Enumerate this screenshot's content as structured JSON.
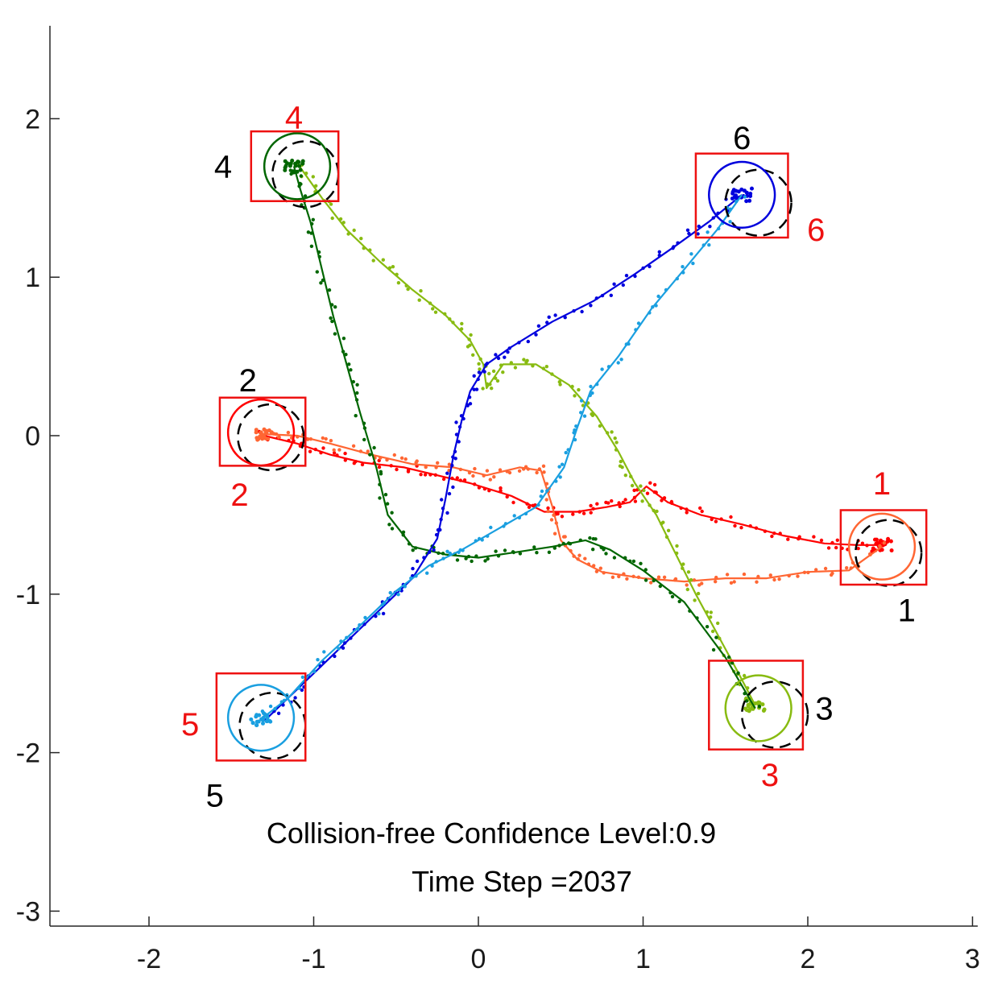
{
  "chart_data": {
    "type": "scatter",
    "title": "",
    "xlabel": "",
    "ylabel": "",
    "xlim": [
      -2.6,
      3.05
    ],
    "ylim": [
      -3.1,
      2.6
    ],
    "xticks": [
      "-2",
      "-1",
      "0",
      "1",
      "2",
      "3"
    ],
    "yticks": [
      "2",
      "1",
      "0",
      "-1",
      "-2",
      "-3"
    ],
    "xtick_values": [
      -2,
      -1,
      0,
      1,
      2,
      3
    ],
    "ytick_values": [
      2,
      1,
      0,
      -1,
      -2,
      -3
    ],
    "grid": false,
    "annotations": [
      "Collision-free Confidence Level:0.9",
      "Time Step =2037"
    ],
    "series": [
      {
        "color": "#ff0000",
        "start_label": "2",
        "goal_label": "1",
        "current": [
          2.45,
          -0.69
        ],
        "path": [
          [
            -1.3,
            0.0
          ],
          [
            -1.1,
            -0.05
          ],
          [
            -0.9,
            -0.12
          ],
          [
            -0.7,
            -0.17
          ],
          [
            -0.45,
            -0.2
          ],
          [
            -0.25,
            -0.25
          ],
          [
            -0.05,
            -0.3
          ],
          [
            0.2,
            -0.38
          ],
          [
            0.4,
            -0.48
          ],
          [
            0.6,
            -0.48
          ],
          [
            0.78,
            -0.45
          ],
          [
            0.92,
            -0.42
          ],
          [
            1.02,
            -0.32
          ],
          [
            1.15,
            -0.42
          ],
          [
            1.35,
            -0.5
          ],
          [
            1.6,
            -0.56
          ],
          [
            1.85,
            -0.63
          ],
          [
            2.1,
            -0.68
          ],
          [
            2.3,
            -0.69
          ],
          [
            2.45,
            -0.69
          ]
        ]
      },
      {
        "color": "#ff6633",
        "start_label": "1",
        "goal_label": "2",
        "current": [
          -1.3,
          0.01
        ],
        "path": [
          [
            2.45,
            -0.7
          ],
          [
            2.25,
            -0.85
          ],
          [
            2.0,
            -0.86
          ],
          [
            1.75,
            -0.9
          ],
          [
            1.5,
            -0.9
          ],
          [
            1.25,
            -0.92
          ],
          [
            1.0,
            -0.9
          ],
          [
            0.75,
            -0.86
          ],
          [
            0.6,
            -0.78
          ],
          [
            0.5,
            -0.66
          ],
          [
            0.45,
            -0.45
          ],
          [
            0.38,
            -0.22
          ],
          [
            0.25,
            -0.2
          ],
          [
            0.05,
            -0.25
          ],
          [
            -0.15,
            -0.2
          ],
          [
            -0.4,
            -0.18
          ],
          [
            -0.65,
            -0.12
          ],
          [
            -0.9,
            -0.05
          ],
          [
            -1.1,
            0.0
          ],
          [
            -1.3,
            0.01
          ]
        ]
      },
      {
        "color": "#88bb11",
        "start_label": "4",
        "goal_label": "3",
        "current": [
          1.68,
          -1.7
        ],
        "path": [
          [
            -1.1,
            1.72
          ],
          [
            -0.95,
            1.5
          ],
          [
            -0.8,
            1.3
          ],
          [
            -0.6,
            1.1
          ],
          [
            -0.4,
            0.92
          ],
          [
            -0.2,
            0.76
          ],
          [
            -0.05,
            0.6
          ],
          [
            0.03,
            0.45
          ],
          [
            0.05,
            0.3
          ],
          [
            0.15,
            0.45
          ],
          [
            0.35,
            0.45
          ],
          [
            0.55,
            0.32
          ],
          [
            0.72,
            0.12
          ],
          [
            0.85,
            -0.1
          ],
          [
            0.95,
            -0.3
          ],
          [
            1.08,
            -0.5
          ],
          [
            1.2,
            -0.75
          ],
          [
            1.32,
            -1.0
          ],
          [
            1.45,
            -1.25
          ],
          [
            1.58,
            -1.5
          ],
          [
            1.68,
            -1.7
          ]
        ]
      },
      {
        "color": "#006600",
        "start_label": "3",
        "goal_label": "4",
        "current": [
          -1.12,
          1.7
        ],
        "path": [
          [
            1.68,
            -1.72
          ],
          [
            1.5,
            -1.4
          ],
          [
            1.25,
            -1.05
          ],
          [
            1.0,
            -0.85
          ],
          [
            0.8,
            -0.72
          ],
          [
            0.65,
            -0.66
          ],
          [
            0.45,
            -0.7
          ],
          [
            0.2,
            -0.74
          ],
          [
            0.0,
            -0.77
          ],
          [
            -0.2,
            -0.75
          ],
          [
            -0.4,
            -0.7
          ],
          [
            -0.55,
            -0.5
          ],
          [
            -0.62,
            -0.2
          ],
          [
            -0.72,
            0.15
          ],
          [
            -0.8,
            0.45
          ],
          [
            -0.88,
            0.75
          ],
          [
            -0.95,
            1.05
          ],
          [
            -1.02,
            1.35
          ],
          [
            -1.08,
            1.55
          ],
          [
            -1.12,
            1.7
          ]
        ]
      },
      {
        "color": "#0000dd",
        "start_label": "5",
        "goal_label": "6",
        "current": [
          1.6,
          1.52
        ],
        "path": [
          [
            -1.3,
            -1.8
          ],
          [
            -1.1,
            -1.6
          ],
          [
            -0.85,
            -1.35
          ],
          [
            -0.6,
            -1.1
          ],
          [
            -0.4,
            -0.9
          ],
          [
            -0.25,
            -0.65
          ],
          [
            -0.2,
            -0.4
          ],
          [
            -0.15,
            -0.12
          ],
          [
            -0.1,
            0.1
          ],
          [
            -0.05,
            0.28
          ],
          [
            0.05,
            0.45
          ],
          [
            0.2,
            0.56
          ],
          [
            0.45,
            0.72
          ],
          [
            0.7,
            0.85
          ],
          [
            0.95,
            1.02
          ],
          [
            1.2,
            1.2
          ],
          [
            1.4,
            1.35
          ],
          [
            1.6,
            1.52
          ]
        ]
      },
      {
        "color": "#1a9fe0",
        "start_label": "6",
        "goal_label": "5",
        "current": [
          -1.32,
          -1.79
        ],
        "path": [
          [
            1.6,
            1.52
          ],
          [
            1.45,
            1.3
          ],
          [
            1.25,
            1.05
          ],
          [
            1.05,
            0.8
          ],
          [
            0.85,
            0.5
          ],
          [
            0.68,
            0.28
          ],
          [
            0.6,
            0.05
          ],
          [
            0.52,
            -0.2
          ],
          [
            0.35,
            -0.45
          ],
          [
            0.1,
            -0.6
          ],
          [
            -0.1,
            -0.72
          ],
          [
            -0.3,
            -0.82
          ],
          [
            -0.5,
            -0.98
          ],
          [
            -0.7,
            -1.18
          ],
          [
            -0.95,
            -1.42
          ],
          [
            -1.15,
            -1.65
          ],
          [
            -1.32,
            -1.79
          ]
        ]
      }
    ],
    "start_markers": [
      {
        "label": "1",
        "center": [
          2.45,
          -0.7
        ]
      },
      {
        "label": "2",
        "center": [
          -1.3,
          0.0
        ]
      },
      {
        "label": "3",
        "center": [
          1.68,
          -1.7
        ]
      },
      {
        "label": "4",
        "center": [
          -1.12,
          1.7
        ]
      },
      {
        "label": "5",
        "center": [
          -1.32,
          -1.79
        ]
      },
      {
        "label": "6",
        "center": [
          1.6,
          1.52
        ]
      }
    ],
    "goal_markers": [
      {
        "label": "1",
        "center": [
          2.45,
          -0.7
        ]
      },
      {
        "label": "2",
        "center": [
          -1.32,
          0.02
        ]
      },
      {
        "label": "3",
        "center": [
          1.7,
          -1.72
        ]
      },
      {
        "label": "4",
        "center": [
          -1.1,
          1.7
        ]
      },
      {
        "label": "5",
        "center": [
          -1.32,
          -1.78
        ]
      },
      {
        "label": "6",
        "center": [
          1.6,
          1.52
        ]
      }
    ]
  }
}
